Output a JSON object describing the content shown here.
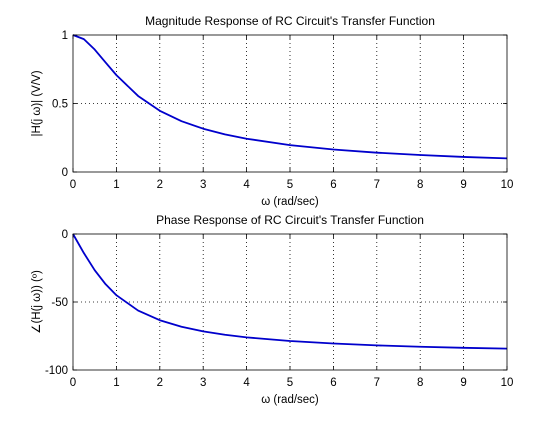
{
  "chart_data": [
    {
      "type": "line",
      "title": "Magnitude Response of RC Circuit's Transfer Function",
      "xlabel": "ω (rad/sec)",
      "ylabel": "|H(j ω)| (V/V)",
      "xlim": [
        0,
        10
      ],
      "ylim": [
        0,
        1
      ],
      "xticks": [
        "0",
        "1",
        "2",
        "3",
        "4",
        "5",
        "6",
        "7",
        "8",
        "9",
        "10"
      ],
      "yticks": [
        "0",
        "0.5",
        "1"
      ],
      "grid": true,
      "series": [
        {
          "color": "#0000cc",
          "x": [
            0,
            0.25,
            0.5,
            0.75,
            1,
            1.5,
            2,
            2.5,
            3,
            3.5,
            4,
            5,
            6,
            7,
            8,
            9,
            10
          ],
          "y": [
            1.0,
            0.97,
            0.894,
            0.8,
            0.707,
            0.555,
            0.447,
            0.371,
            0.316,
            0.275,
            0.243,
            0.196,
            0.164,
            0.141,
            0.124,
            0.11,
            0.0995
          ]
        }
      ]
    },
    {
      "type": "line",
      "title": "Phase Response of RC Circuit's Transfer Function",
      "xlabel": "ω (rad/sec)",
      "ylabel": "∠(H(j ω)) (º)",
      "xlim": [
        0,
        10
      ],
      "ylim": [
        -100,
        0
      ],
      "xticks": [
        "0",
        "1",
        "2",
        "3",
        "4",
        "5",
        "6",
        "7",
        "8",
        "9",
        "10"
      ],
      "yticks": [
        "-100",
        "-50",
        "0"
      ],
      "grid": true,
      "series": [
        {
          "color": "#0000cc",
          "x": [
            0,
            0.25,
            0.5,
            0.75,
            1,
            1.5,
            2,
            2.5,
            3,
            3.5,
            4,
            5,
            6,
            7,
            8,
            9,
            10
          ],
          "y": [
            0,
            -14.0,
            -26.6,
            -36.9,
            -45.0,
            -56.3,
            -63.4,
            -68.2,
            -71.6,
            -74.1,
            -76.0,
            -78.7,
            -80.5,
            -81.9,
            -82.9,
            -83.7,
            -84.3
          ]
        }
      ]
    }
  ]
}
